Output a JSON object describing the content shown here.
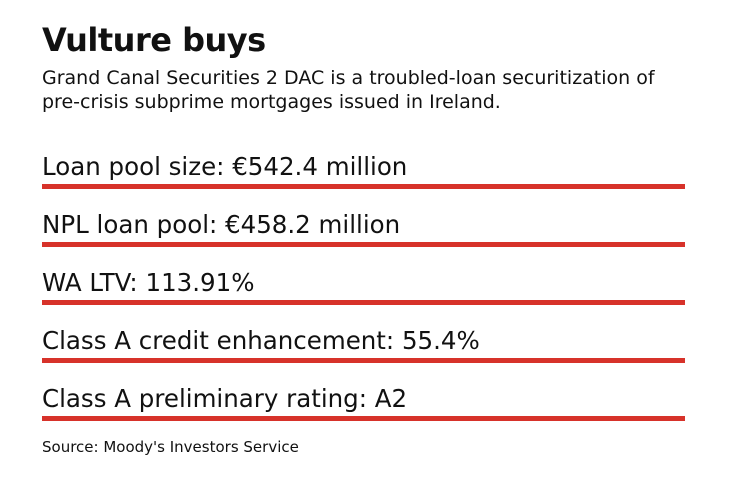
{
  "title": "Vulture buys",
  "subtitle": "Grand Canal Securities 2 DAC is a troubled-loan securitization of pre-crisis subprime mortgages issued in Ireland.",
  "stats": [
    {
      "label": "Loan pool size: €542.4 million"
    },
    {
      "label": "NPL loan pool: €458.2 million"
    },
    {
      "label": "WA LTV: 113.91%"
    },
    {
      "label": "Class A credit enhancement: 55.4%"
    },
    {
      "label": "Class A preliminary rating: A2"
    }
  ],
  "source": "Source: Moody's Investors Service",
  "colors": {
    "rule": "#d7322a",
    "text": "#111111",
    "background": "#ffffff"
  }
}
